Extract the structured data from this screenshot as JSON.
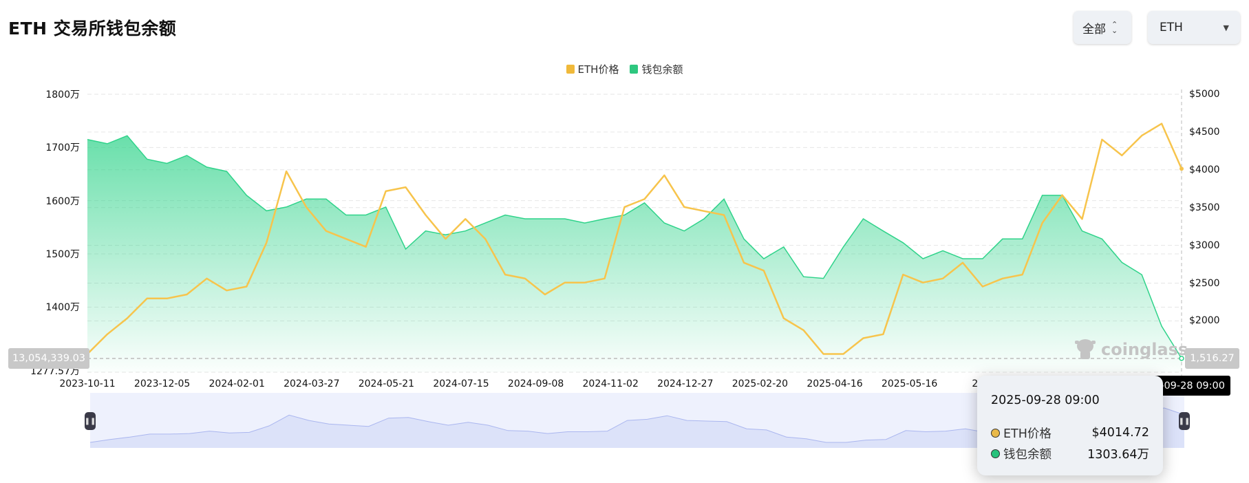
{
  "header": {
    "title": "ETH 交易所钱包余额",
    "range_select": {
      "label": "全部",
      "icon": "up-down-chevron-icon"
    },
    "coin_select": {
      "label": "ETH",
      "icon": "caret-down-icon"
    }
  },
  "colors": {
    "price": "#f7c44c",
    "balance": "#2fd38a",
    "navigator": "#aab6ef"
  },
  "chart_data": {
    "type": "line+area",
    "legend": [
      {
        "name": "ETH价格",
        "color": "#f0b93a"
      },
      {
        "name": "钱包余额",
        "color": "#2ec77f"
      }
    ],
    "legend_position": "top-center",
    "x_tick_labels": [
      "2023-10-11",
      "2023-12-05",
      "2024-02-01",
      "2024-03-27",
      "2024-05-21",
      "2024-07-15",
      "2024-09-08",
      "2024-11-02",
      "2024-12-27",
      "2025-02-20",
      "2025-04-16",
      "2025-05-16",
      "2025"
    ],
    "x_range": [
      "2023-10-11",
      "2025-09-28 09:00"
    ],
    "y_left": {
      "unit": "万",
      "ylim": [
        1277.57,
        1800
      ],
      "ticks": [
        "1800万",
        "1700万",
        "1600万",
        "1500万",
        "1400万"
      ],
      "min_label": "1277.57万"
    },
    "y_right": {
      "unit": "$",
      "ylim": [
        1321,
        5000
      ],
      "ticks": [
        "$5000",
        "$4500",
        "$4000",
        "$3500",
        "$3000",
        "$2500",
        "$2000"
      ]
    },
    "grid": true,
    "series": [
      {
        "name": "钱包余额",
        "axis": "left",
        "type": "area",
        "values": [
          1715,
          1707,
          1722,
          1678,
          1670,
          1685,
          1663,
          1655,
          1610,
          1581,
          1588,
          1603,
          1603,
          1573,
          1573,
          1588,
          1509,
          1543,
          1536,
          1543,
          1558,
          1573,
          1566,
          1566,
          1566,
          1558,
          1566,
          1573,
          1596,
          1558,
          1543,
          1566,
          1603,
          1528,
          1491,
          1513,
          1457,
          1454,
          1513,
          1566,
          1543,
          1521,
          1491,
          1506,
          1491,
          1491,
          1528,
          1528,
          1610,
          1610,
          1543,
          1528,
          1484,
          1461,
          1364,
          1303.64
        ]
      },
      {
        "name": "ETH价格",
        "axis": "right",
        "type": "line",
        "values": [
          1562,
          1824,
          2035,
          2297,
          2297,
          2350,
          2561,
          2403,
          2455,
          3034,
          3980,
          3507,
          3191,
          3086,
          2981,
          3717,
          3770,
          3402,
          3086,
          3349,
          3086,
          2613,
          2561,
          2350,
          2508,
          2508,
          2561,
          3507,
          3612,
          3927,
          3507,
          3454,
          3402,
          2771,
          2666,
          2035,
          1877,
          1562,
          1562,
          1772,
          1824,
          2613,
          2508,
          2561,
          2771,
          2455,
          2561,
          2613,
          3296,
          3665,
          3349,
          4401,
          4190,
          4453,
          4611,
          4014.72
        ]
      }
    ],
    "crosshair": {
      "left_value": "13,054,339.03",
      "right_value": "1,516.27",
      "x_value": "2025-09-28 09:00"
    },
    "tooltip": {
      "date": "2025-09-28 09:00",
      "rows": [
        {
          "name": "ETH价格",
          "value": "$4014.72",
          "color": "#e9b949"
        },
        {
          "name": "钱包余额",
          "value": "1303.64万",
          "color": "#27c27c"
        }
      ]
    }
  },
  "watermark": "coinglass",
  "navigator": {
    "handle_icon": "pause-grip-icon"
  }
}
